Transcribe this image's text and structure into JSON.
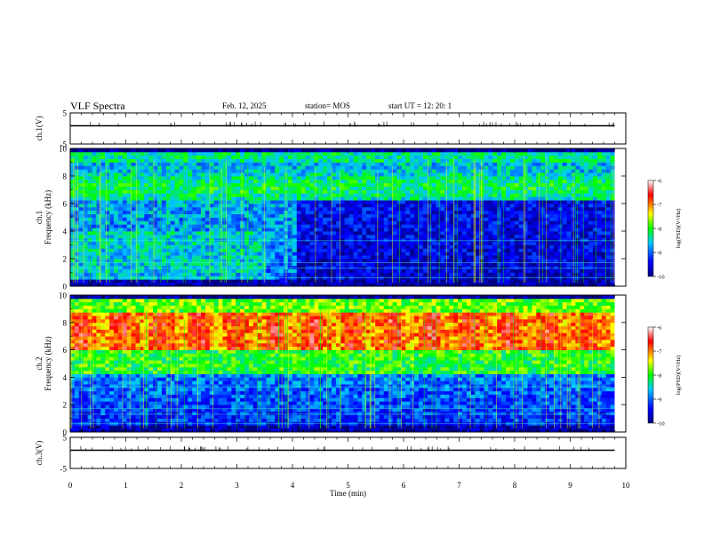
{
  "header": {
    "title": "VLF Spectra",
    "date": "Feb. 12, 2025",
    "station": "station= MOS",
    "start_ut": "start  UT =   12: 20: 1"
  },
  "colorbar": {
    "label": "log(PSD)(V²/Hz)",
    "ticks": [
      "-6",
      "-7",
      "-8",
      "-9",
      "-10"
    ],
    "range": [
      -10,
      -6
    ],
    "colors": [
      "#000080",
      "#0000ff",
      "#00c8ff",
      "#00ff00",
      "#ffff00",
      "#ff0000",
      "#ffffff"
    ]
  },
  "chart_data": [
    {
      "type": "line",
      "title": "",
      "ylabel": "ch.1(V)",
      "ylim": [
        -5,
        5
      ],
      "yticks": [
        "5",
        "-5"
      ],
      "series": [
        {
          "values": [
            0
          ]
        }
      ]
    },
    {
      "type": "heatmap",
      "ylabel": "ch.1",
      "ylabel2": "Frequency (kHz)",
      "xlim": [
        0,
        10
      ],
      "ylim": [
        0,
        10
      ],
      "yticks": [
        "0",
        "2",
        "4",
        "6",
        "8",
        "10"
      ],
      "z_range": [
        -10,
        -6
      ],
      "notes": "broadband noise 0-10 kHz, high PSD near 6-9 kHz, lower PSD below 5 kHz after ~4 min"
    },
    {
      "type": "heatmap",
      "ylabel": "ch.2",
      "ylabel2": "Frequency (kHz)",
      "xlim": [
        0,
        10
      ],
      "ylim": [
        0,
        10
      ],
      "yticks": [
        "0",
        "2",
        "4",
        "6",
        "8",
        "10"
      ],
      "z_range": [
        -10,
        -6
      ],
      "notes": "strong band 6-8 kHz throughout"
    },
    {
      "type": "line",
      "ylabel": "ch.3(V)",
      "ylim": [
        -5,
        5
      ],
      "yticks": [
        "5",
        "-5"
      ],
      "series": [
        {
          "values": [
            0
          ]
        }
      ]
    }
  ],
  "xaxis": {
    "label": "Time (min)",
    "xlim": [
      0,
      10
    ],
    "ticks": [
      "0",
      "1",
      "2",
      "3",
      "4",
      "5",
      "6",
      "7",
      "8",
      "9",
      "10"
    ],
    "data_end_min": 9.8
  }
}
